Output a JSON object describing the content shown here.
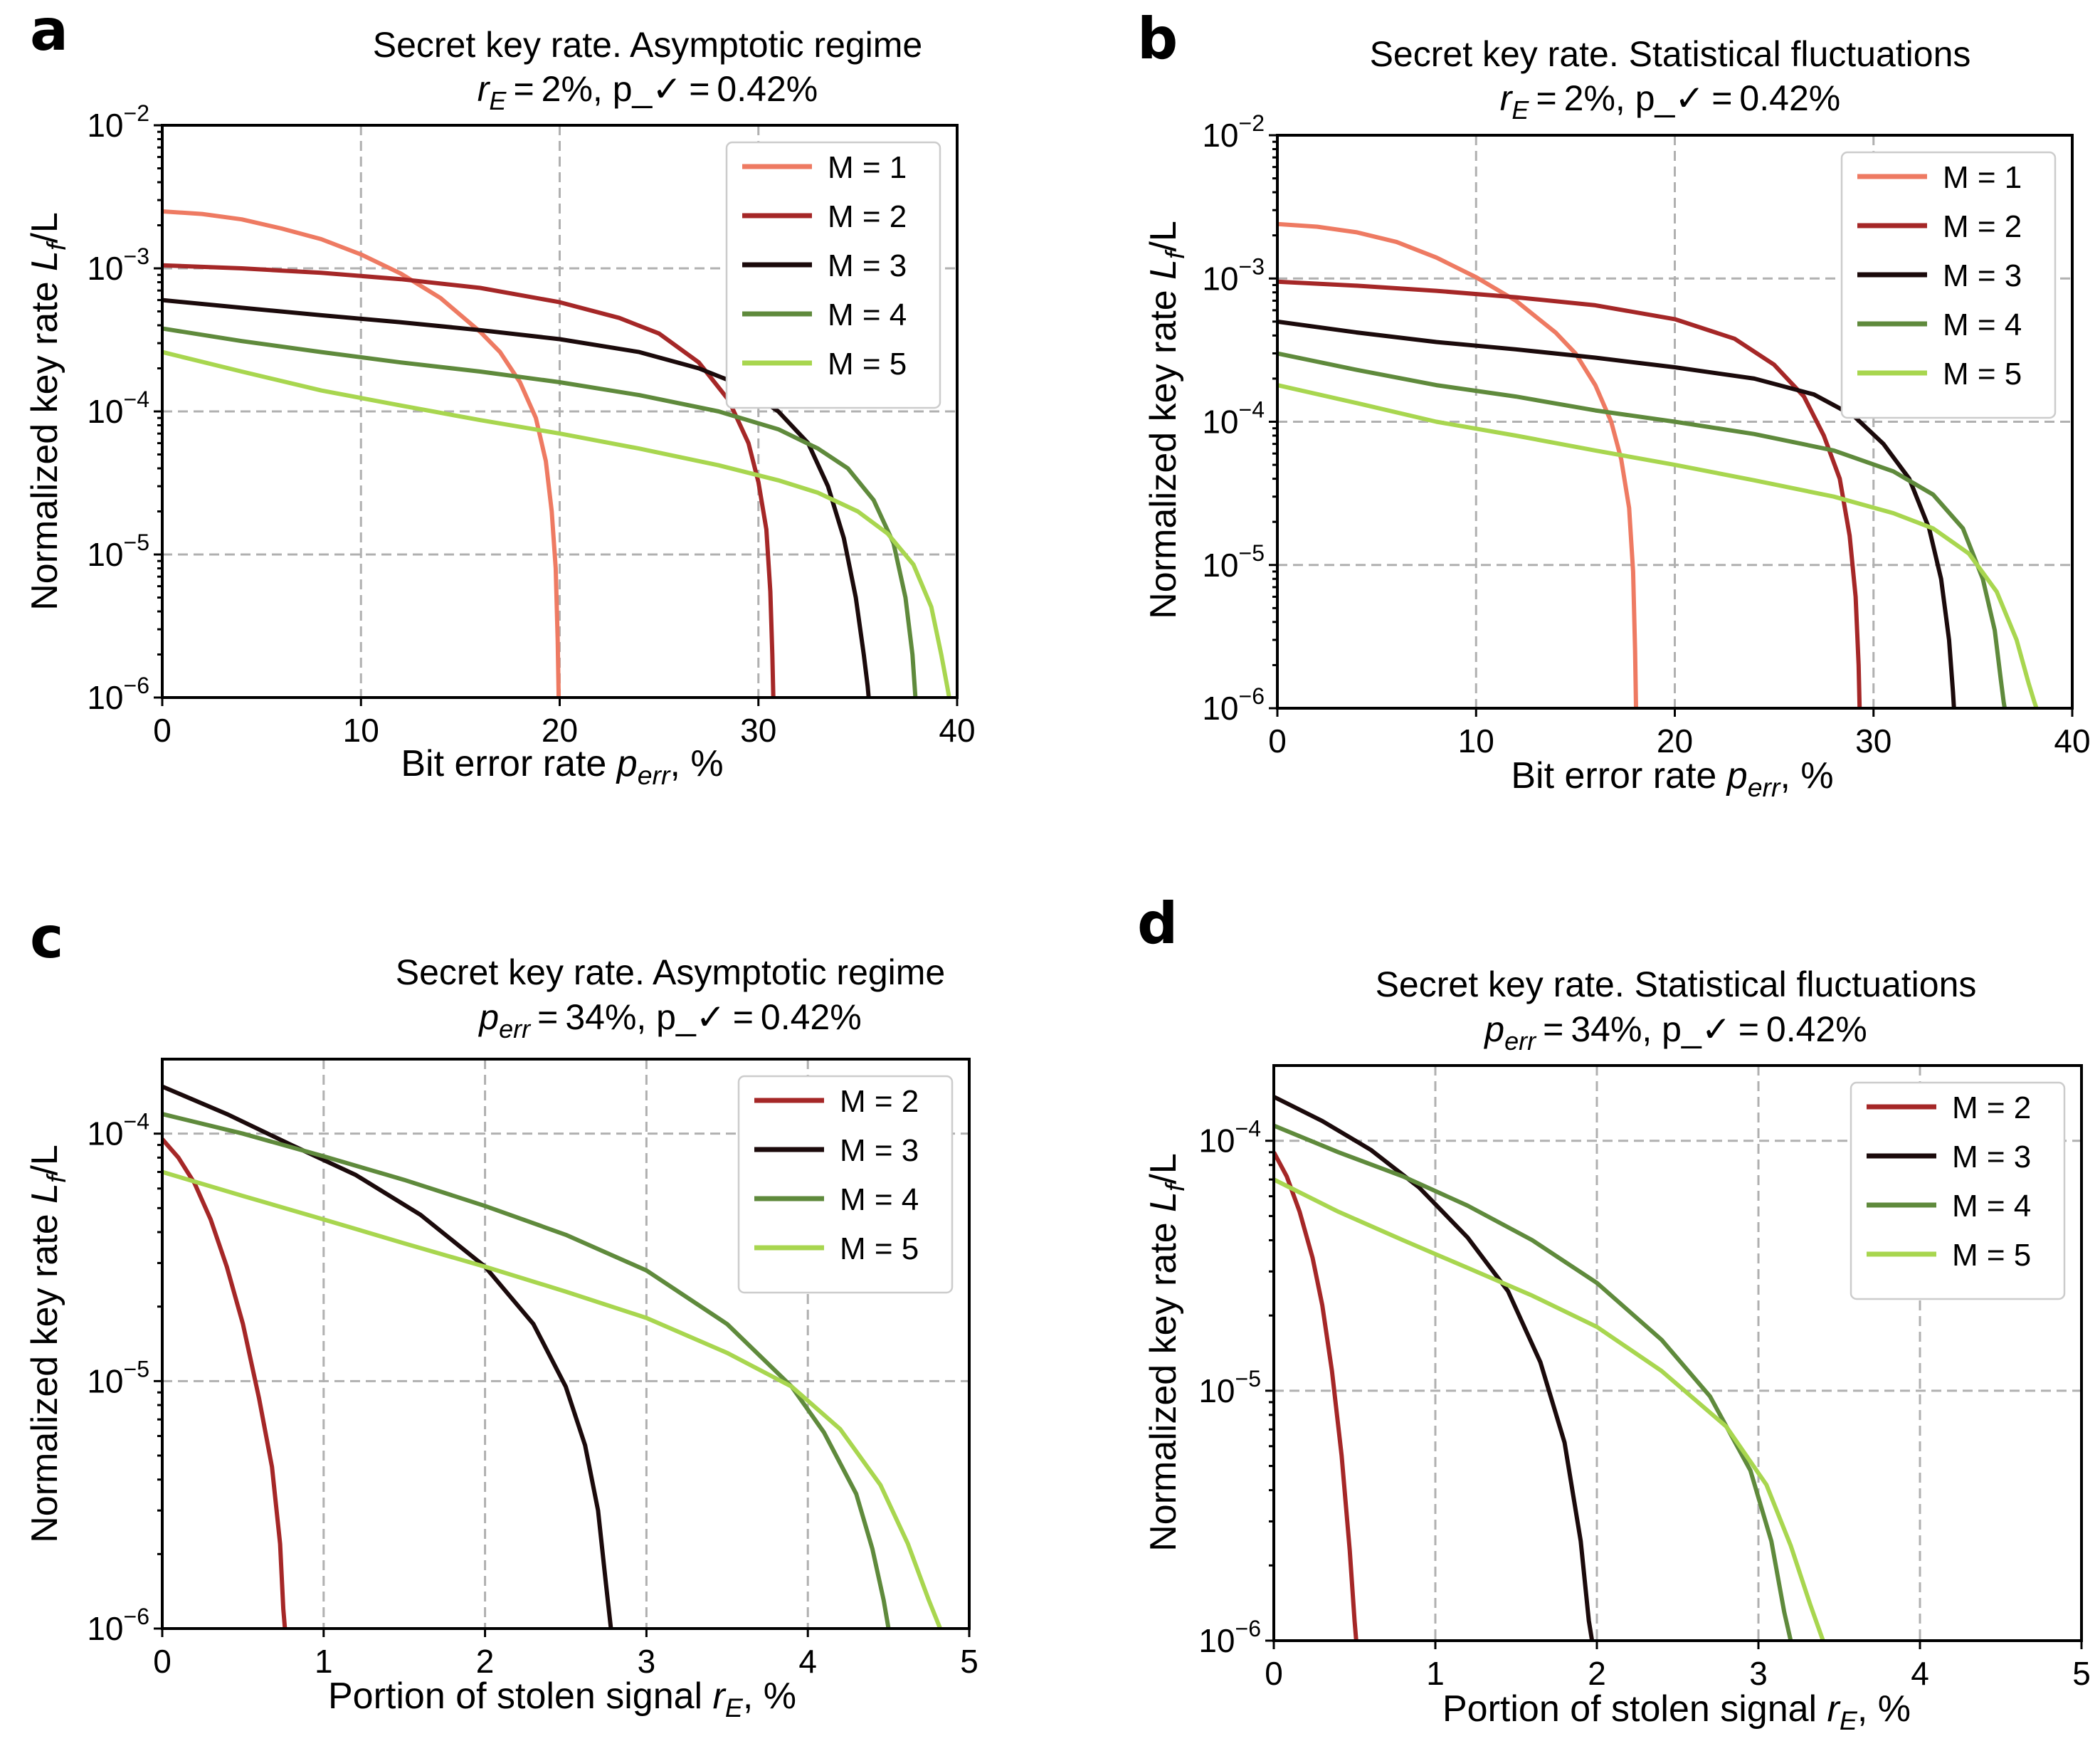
{
  "colors": {
    "M1": "#ee7a62",
    "M2": "#a52727",
    "M3": "#1b0a0b",
    "M4": "#5f8a3c",
    "M5": "#a8d64f"
  },
  "chart_data": [
    {
      "panel": "a",
      "type": "line",
      "title": "Secret key rate. Asymptotic regime",
      "subtitle": "r_E = 2%, p_✓ = 0.42%",
      "xlabel": "Bit error rate p_err, %",
      "ylabel": "Normalized key rate L_f/L",
      "yscale": "log",
      "xlim": [
        0,
        40
      ],
      "ylim": [
        1e-06,
        0.01
      ],
      "xticks": [
        0,
        10,
        20,
        30,
        40
      ],
      "xtick_labels": [
        "0",
        "10",
        "20",
        "30",
        "40"
      ],
      "ytick_exponents": [
        -2,
        -3,
        -4,
        -5,
        -6
      ],
      "grid": true,
      "legend_position": "top-right",
      "series": [
        {
          "name": "M = 1",
          "color_key": "M1",
          "x": [
            0,
            2,
            4,
            6,
            8,
            10,
            12,
            14,
            16,
            17,
            18,
            18.8,
            19.3,
            19.6,
            19.8,
            19.9,
            19.95
          ],
          "y": [
            0.0025,
            0.0024,
            0.0022,
            0.0019,
            0.0016,
            0.00125,
            0.00092,
            0.00062,
            0.00036,
            0.00026,
            0.00016,
            9e-05,
            4.5e-05,
            2e-05,
            8e-06,
            2.5e-06,
            1e-06
          ]
        },
        {
          "name": "M = 2",
          "color_key": "M2",
          "x": [
            0,
            4,
            8,
            12,
            16,
            20,
            23,
            25,
            27,
            28.5,
            29.5,
            30,
            30.4,
            30.6,
            30.7,
            30.75
          ],
          "y": [
            0.00105,
            0.001,
            0.00093,
            0.00084,
            0.00073,
            0.00058,
            0.00045,
            0.00035,
            0.00022,
            0.00012,
            6e-05,
            3.2e-05,
            1.5e-05,
            5.5e-06,
            2e-06,
            1e-06
          ]
        },
        {
          "name": "M = 3",
          "color_key": "M3",
          "x": [
            0,
            4,
            8,
            12,
            16,
            20,
            24,
            27,
            29,
            31,
            32.5,
            33.5,
            34.3,
            34.9,
            35.3,
            35.5,
            35.55
          ],
          "y": [
            0.0006,
            0.00053,
            0.00047,
            0.00042,
            0.00037,
            0.00032,
            0.00026,
            0.0002,
            0.000155,
            0.0001,
            6e-05,
            3e-05,
            1.3e-05,
            5e-06,
            2e-06,
            1.2e-06,
            1e-06
          ]
        },
        {
          "name": "M = 4",
          "color_key": "M4",
          "x": [
            0,
            4,
            8,
            12,
            16,
            20,
            24,
            28,
            31,
            33,
            34.5,
            35.8,
            36.8,
            37.4,
            37.75,
            37.9
          ],
          "y": [
            0.00038,
            0.00031,
            0.00026,
            0.00022,
            0.00019,
            0.00016,
            0.00013,
            0.0001,
            7.5e-05,
            5.5e-05,
            4e-05,
            2.4e-05,
            1.2e-05,
            5e-06,
            2e-06,
            1e-06
          ]
        },
        {
          "name": "M = 5",
          "color_key": "M5",
          "x": [
            0,
            4,
            8,
            12,
            16,
            20,
            24,
            28,
            31,
            33,
            35,
            36.5,
            37.8,
            38.7,
            39.2,
            39.5,
            39.6
          ],
          "y": [
            0.00026,
            0.00019,
            0.00014,
            0.00011,
            8.7e-05,
            7e-05,
            5.5e-05,
            4.2e-05,
            3.3e-05,
            2.7e-05,
            2e-05,
            1.4e-05,
            8.5e-06,
            4.3e-06,
            2e-06,
            1.2e-06,
            1e-06
          ]
        }
      ]
    },
    {
      "panel": "b",
      "type": "line",
      "title": "Secret key rate. Statistical fluctuations",
      "subtitle": "r_E = 2%, p_✓ = 0.42%",
      "xlabel": "Bit error rate p_err, %",
      "ylabel": "Normalized key rate L_f/L",
      "yscale": "log",
      "xlim": [
        0,
        40
      ],
      "ylim": [
        1e-06,
        0.01
      ],
      "xticks": [
        0,
        10,
        20,
        30,
        40
      ],
      "xtick_labels": [
        "0",
        "10",
        "20",
        "30",
        "40"
      ],
      "ytick_exponents": [
        -2,
        -3,
        -4,
        -5,
        -6
      ],
      "grid": true,
      "legend_position": "top-right",
      "series": [
        {
          "name": "M = 1",
          "color_key": "M1",
          "x": [
            0,
            2,
            4,
            6,
            8,
            10,
            12,
            14,
            15,
            16,
            16.8,
            17.3,
            17.7,
            17.9,
            18,
            18.05
          ],
          "y": [
            0.0024,
            0.0023,
            0.0021,
            0.0018,
            0.0014,
            0.00102,
            0.0007,
            0.00042,
            0.0003,
            0.00018,
            0.0001,
            5.5e-05,
            2.5e-05,
            9e-06,
            2.5e-06,
            1e-06
          ]
        },
        {
          "name": "M = 2",
          "color_key": "M2",
          "x": [
            0,
            4,
            8,
            12,
            16,
            20,
            23,
            25,
            26.5,
            27.5,
            28.3,
            28.8,
            29.1,
            29.25,
            29.3
          ],
          "y": [
            0.00095,
            0.00089,
            0.00082,
            0.00074,
            0.00065,
            0.00052,
            0.00038,
            0.00025,
            0.00015,
            8e-05,
            4e-05,
            1.6e-05,
            6e-06,
            2e-06,
            1e-06
          ]
        },
        {
          "name": "M = 3",
          "color_key": "M3",
          "x": [
            0,
            4,
            8,
            12,
            16,
            20,
            24,
            27,
            29,
            30.5,
            31.8,
            32.8,
            33.4,
            33.8,
            34,
            34.05
          ],
          "y": [
            0.0005,
            0.00042,
            0.00036,
            0.00032,
            0.00028,
            0.00024,
            0.0002,
            0.000155,
            0.00011,
            7e-05,
            4e-05,
            1.8e-05,
            8e-06,
            3e-06,
            1.3e-06,
            1e-06
          ]
        },
        {
          "name": "M = 4",
          "color_key": "M4",
          "x": [
            0,
            4,
            8,
            12,
            16,
            20,
            24,
            28,
            31,
            33,
            34.5,
            35.5,
            36.1,
            36.4,
            36.55,
            36.6
          ],
          "y": [
            0.0003,
            0.00023,
            0.00018,
            0.00015,
            0.00012,
            0.0001,
            8.2e-05,
            6.3e-05,
            4.5e-05,
            3.1e-05,
            1.8e-05,
            8e-06,
            3.5e-06,
            1.6e-06,
            1.1e-06,
            1e-06
          ]
        },
        {
          "name": "M = 5",
          "color_key": "M5",
          "x": [
            0,
            4,
            8,
            12,
            16,
            20,
            24,
            28,
            31,
            33,
            34.8,
            36.2,
            37.2,
            37.8,
            38.1,
            38.2
          ],
          "y": [
            0.00018,
            0.000135,
            0.0001,
            8e-05,
            6.3e-05,
            5e-05,
            3.9e-05,
            3e-05,
            2.3e-05,
            1.8e-05,
            1.2e-05,
            6.5e-06,
            3e-06,
            1.5e-06,
            1.1e-06,
            1e-06
          ]
        }
      ]
    },
    {
      "panel": "c",
      "type": "line",
      "title": "Secret key rate. Asymptotic regime",
      "subtitle": "p_err = 34%, p_✓ = 0.42%",
      "xlabel": "Portion of stolen signal r_E, %",
      "ylabel": "Normalized key rate L_f/L",
      "yscale": "log",
      "xlim": [
        0,
        5
      ],
      "ylim": [
        1e-06,
        0.0002
      ],
      "xticks": [
        0,
        1,
        2,
        3,
        4,
        5
      ],
      "xtick_labels": [
        "0",
        "1",
        "2",
        "3",
        "4",
        "5"
      ],
      "ytick_exponents": [
        -4,
        -5,
        -6
      ],
      "grid": true,
      "legend_position": "top-right",
      "series": [
        {
          "name": "M = 2",
          "color_key": "M2",
          "x": [
            0,
            0.1,
            0.2,
            0.3,
            0.4,
            0.5,
            0.6,
            0.68,
            0.73,
            0.75,
            0.76
          ],
          "y": [
            9.5e-05,
            8e-05,
            6.3e-05,
            4.5e-05,
            2.9e-05,
            1.7e-05,
            8.5e-06,
            4.5e-06,
            2.2e-06,
            1.2e-06,
            1e-06
          ]
        },
        {
          "name": "M = 3",
          "color_key": "M3",
          "x": [
            0,
            0.4,
            0.8,
            1.2,
            1.6,
            2.0,
            2.3,
            2.5,
            2.62,
            2.7,
            2.75,
            2.78
          ],
          "y": [
            0.000155,
            0.00012,
            9e-05,
            6.8e-05,
            4.7e-05,
            2.9e-05,
            1.7e-05,
            9.5e-06,
            5.5e-06,
            3e-06,
            1.5e-06,
            1e-06
          ]
        },
        {
          "name": "M = 4",
          "color_key": "M4",
          "x": [
            0,
            0.5,
            1.0,
            1.5,
            2.0,
            2.5,
            3.0,
            3.5,
            3.9,
            4.1,
            4.3,
            4.4,
            4.47,
            4.5
          ],
          "y": [
            0.00012,
            0.0001,
            8.1e-05,
            6.5e-05,
            5.1e-05,
            3.9e-05,
            2.8e-05,
            1.7e-05,
            9.5e-06,
            6.2e-06,
            3.5e-06,
            2.1e-06,
            1.3e-06,
            1e-06
          ]
        },
        {
          "name": "M = 5",
          "color_key": "M5",
          "x": [
            0,
            0.5,
            1.0,
            1.5,
            2.0,
            2.5,
            3.0,
            3.5,
            3.9,
            4.2,
            4.45,
            4.62,
            4.75,
            4.82
          ],
          "y": [
            7e-05,
            5.6e-05,
            4.5e-05,
            3.6e-05,
            2.9e-05,
            2.3e-05,
            1.8e-05,
            1.3e-05,
            9.5e-06,
            6.4e-06,
            3.8e-06,
            2.2e-06,
            1.3e-06,
            1e-06
          ]
        }
      ]
    },
    {
      "panel": "d",
      "type": "line",
      "title": "Secret key rate. Statistical fluctuations",
      "subtitle": "p_err = 34%, p_✓ = 0.42%",
      "xlabel": "Portion of stolen signal r_E, %",
      "ylabel": "Normalized key rate L_f/L",
      "yscale": "log",
      "xlim": [
        0,
        5
      ],
      "ylim": [
        1e-06,
        0.0002
      ],
      "xticks": [
        0,
        1,
        2,
        3,
        4,
        5
      ],
      "xtick_labels": [
        "0",
        "1",
        "2",
        "3",
        "4",
        "5"
      ],
      "ytick_exponents": [
        -4,
        -5,
        -6
      ],
      "grid": true,
      "legend_position": "top-right",
      "series": [
        {
          "name": "M = 2",
          "color_key": "M2",
          "x": [
            0,
            0.08,
            0.16,
            0.24,
            0.3,
            0.36,
            0.42,
            0.47,
            0.5,
            0.51
          ],
          "y": [
            9e-05,
            7.2e-05,
            5.2e-05,
            3.4e-05,
            2.2e-05,
            1.2e-05,
            5.5e-06,
            2.3e-06,
            1.2e-06,
            1e-06
          ]
        },
        {
          "name": "M = 3",
          "color_key": "M3",
          "x": [
            0,
            0.3,
            0.6,
            0.9,
            1.2,
            1.45,
            1.65,
            1.8,
            1.9,
            1.95,
            1.97
          ],
          "y": [
            0.00015,
            0.00012,
            9.2e-05,
            6.5e-05,
            4.1e-05,
            2.5e-05,
            1.3e-05,
            6.2e-06,
            2.5e-06,
            1.2e-06,
            1e-06
          ]
        },
        {
          "name": "M = 4",
          "color_key": "M4",
          "x": [
            0,
            0.4,
            0.8,
            1.2,
            1.6,
            2.0,
            2.4,
            2.7,
            2.95,
            3.08,
            3.16,
            3.2
          ],
          "y": [
            0.000115,
            9e-05,
            7.2e-05,
            5.5e-05,
            4e-05,
            2.7e-05,
            1.6e-05,
            9.5e-06,
            4.8e-06,
            2.5e-06,
            1.3e-06,
            1e-06
          ]
        },
        {
          "name": "M = 5",
          "color_key": "M5",
          "x": [
            0,
            0.4,
            0.8,
            1.2,
            1.6,
            2.0,
            2.4,
            2.8,
            3.05,
            3.2,
            3.32,
            3.4
          ],
          "y": [
            7e-05,
            5.2e-05,
            4e-05,
            3.1e-05,
            2.4e-05,
            1.8e-05,
            1.2e-05,
            7.2e-06,
            4.2e-06,
            2.4e-06,
            1.4e-06,
            1e-06
          ]
        }
      ]
    }
  ]
}
